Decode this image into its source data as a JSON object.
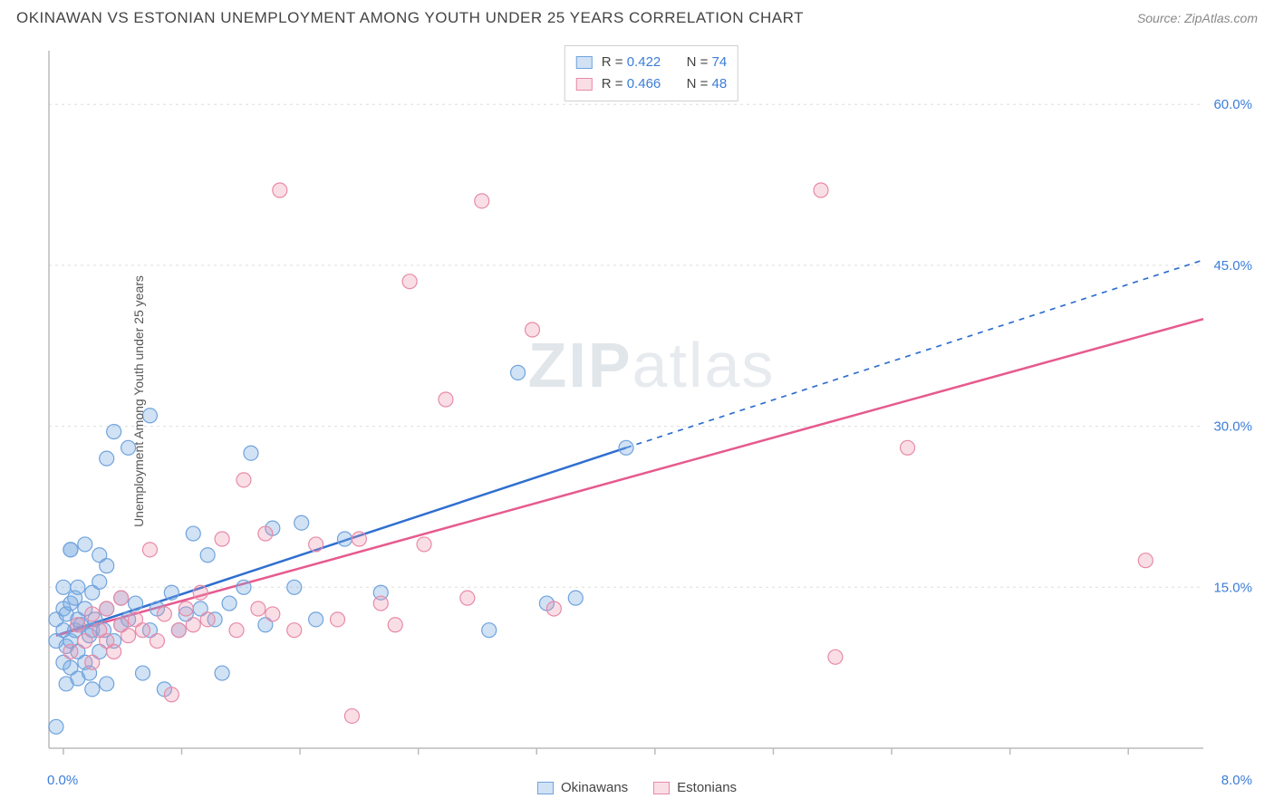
{
  "header": {
    "title": "OKINAWAN VS ESTONIAN UNEMPLOYMENT AMONG YOUTH UNDER 25 YEARS CORRELATION CHART",
    "source": "Source: ZipAtlas.com"
  },
  "watermark": {
    "pre": "ZIP",
    "post": "atlas"
  },
  "chart": {
    "type": "scatter",
    "ylabel": "Unemployment Among Youth under 25 years",
    "xlim": [
      0,
      8
    ],
    "ylim": [
      0,
      65
    ],
    "xtick_positions": [
      0.1,
      0.92,
      1.74,
      2.56,
      3.38,
      4.2,
      5.02,
      5.84,
      6.66,
      7.48
    ],
    "yticks": [
      15,
      30,
      45,
      60
    ],
    "ytick_labels": [
      "15.0%",
      "30.0%",
      "45.0%",
      "60.0%"
    ],
    "xlabel_min": "0.0%",
    "xlabel_max": "8.0%",
    "background_color": "#ffffff",
    "grid_color": "#dddddd",
    "axis_color": "#bbbbbb",
    "tick_label_color": "#3b7dd8",
    "marker_radius": 8,
    "marker_stroke_width": 1.2,
    "series": [
      {
        "name": "Okinawans",
        "fill": "rgba(123,171,227,0.35)",
        "stroke": "#6fa3dd",
        "R": "0.422",
        "N": "74",
        "trend": {
          "x1": 0.05,
          "y1": 10.5,
          "x2": 4.0,
          "y2": 28.0,
          "x2_dash": 8.0,
          "y2_dash": 45.5,
          "color": "#2f6fd0",
          "width": 2.5
        },
        "points": [
          [
            0.05,
            2.0
          ],
          [
            0.05,
            10.0
          ],
          [
            0.05,
            12.0
          ],
          [
            0.1,
            8.0
          ],
          [
            0.1,
            11.0
          ],
          [
            0.1,
            13.0
          ],
          [
            0.1,
            15.0
          ],
          [
            0.12,
            6.0
          ],
          [
            0.12,
            9.5
          ],
          [
            0.12,
            12.5
          ],
          [
            0.15,
            10.0
          ],
          [
            0.15,
            13.5
          ],
          [
            0.15,
            18.5
          ],
          [
            0.15,
            7.5
          ],
          [
            0.18,
            11.0
          ],
          [
            0.18,
            14.0
          ],
          [
            0.2,
            6.5
          ],
          [
            0.2,
            9.0
          ],
          [
            0.2,
            12.0
          ],
          [
            0.2,
            15.0
          ],
          [
            0.22,
            11.5
          ],
          [
            0.25,
            8.0
          ],
          [
            0.25,
            13.0
          ],
          [
            0.25,
            19.0
          ],
          [
            0.28,
            10.5
          ],
          [
            0.28,
            7.0
          ],
          [
            0.3,
            11.0
          ],
          [
            0.3,
            14.5
          ],
          [
            0.3,
            5.5
          ],
          [
            0.32,
            12.0
          ],
          [
            0.35,
            9.0
          ],
          [
            0.35,
            15.5
          ],
          [
            0.35,
            18.0
          ],
          [
            0.38,
            11.0
          ],
          [
            0.4,
            6.0
          ],
          [
            0.4,
            13.0
          ],
          [
            0.4,
            17.0
          ],
          [
            0.4,
            27.0
          ],
          [
            0.45,
            10.0
          ],
          [
            0.45,
            29.5
          ],
          [
            0.5,
            11.5
          ],
          [
            0.5,
            14.0
          ],
          [
            0.55,
            12.0
          ],
          [
            0.55,
            28.0
          ],
          [
            0.6,
            13.5
          ],
          [
            0.65,
            7.0
          ],
          [
            0.7,
            11.0
          ],
          [
            0.7,
            31.0
          ],
          [
            0.75,
            13.0
          ],
          [
            0.8,
            5.5
          ],
          [
            0.85,
            14.5
          ],
          [
            0.9,
            11.0
          ],
          [
            0.95,
            12.5
          ],
          [
            1.0,
            20.0
          ],
          [
            1.05,
            13.0
          ],
          [
            1.1,
            18.0
          ],
          [
            1.15,
            12.0
          ],
          [
            1.2,
            7.0
          ],
          [
            1.25,
            13.5
          ],
          [
            1.35,
            15.0
          ],
          [
            1.4,
            27.5
          ],
          [
            1.5,
            11.5
          ],
          [
            1.55,
            20.5
          ],
          [
            1.7,
            15.0
          ],
          [
            1.75,
            21.0
          ],
          [
            1.85,
            12.0
          ],
          [
            2.05,
            19.5
          ],
          [
            2.3,
            14.5
          ],
          [
            3.05,
            11.0
          ],
          [
            3.25,
            35.0
          ],
          [
            3.45,
            13.5
          ],
          [
            3.65,
            14.0
          ],
          [
            4.0,
            28.0
          ],
          [
            0.15,
            18.5
          ]
        ]
      },
      {
        "name": "Estonians",
        "fill": "rgba(236,145,172,0.30)",
        "stroke": "#e88aa8",
        "R": "0.466",
        "N": "48",
        "trend": {
          "x1": 0.05,
          "y1": 10.5,
          "x2": 8.0,
          "y2": 40.0,
          "color": "#e65a8e",
          "width": 2.5
        },
        "points": [
          [
            0.15,
            9.0
          ],
          [
            0.2,
            11.5
          ],
          [
            0.25,
            10.0
          ],
          [
            0.3,
            8.0
          ],
          [
            0.3,
            12.5
          ],
          [
            0.35,
            11.0
          ],
          [
            0.4,
            10.0
          ],
          [
            0.4,
            13.0
          ],
          [
            0.45,
            9.0
          ],
          [
            0.5,
            11.5
          ],
          [
            0.5,
            14.0
          ],
          [
            0.55,
            10.5
          ],
          [
            0.6,
            12.0
          ],
          [
            0.65,
            11.0
          ],
          [
            0.7,
            18.5
          ],
          [
            0.75,
            10.0
          ],
          [
            0.8,
            12.5
          ],
          [
            0.85,
            5.0
          ],
          [
            0.9,
            11.0
          ],
          [
            0.95,
            13.0
          ],
          [
            1.0,
            11.5
          ],
          [
            1.05,
            14.5
          ],
          [
            1.1,
            12.0
          ],
          [
            1.2,
            19.5
          ],
          [
            1.3,
            11.0
          ],
          [
            1.35,
            25.0
          ],
          [
            1.45,
            13.0
          ],
          [
            1.5,
            20.0
          ],
          [
            1.55,
            12.5
          ],
          [
            1.6,
            52.0
          ],
          [
            1.7,
            11.0
          ],
          [
            1.85,
            19.0
          ],
          [
            2.0,
            12.0
          ],
          [
            2.1,
            3.0
          ],
          [
            2.15,
            19.5
          ],
          [
            2.3,
            13.5
          ],
          [
            2.4,
            11.5
          ],
          [
            2.5,
            43.5
          ],
          [
            2.6,
            19.0
          ],
          [
            2.75,
            32.5
          ],
          [
            3.0,
            51.0
          ],
          [
            3.35,
            39.0
          ],
          [
            3.5,
            13.0
          ],
          [
            5.35,
            52.0
          ],
          [
            5.45,
            8.5
          ],
          [
            5.95,
            28.0
          ],
          [
            7.6,
            17.5
          ],
          [
            2.9,
            14.0
          ]
        ]
      }
    ],
    "legend_top": [
      {
        "swatch": 0,
        "r_label": "R =",
        "n_label": "N ="
      },
      {
        "swatch": 1,
        "r_label": "R =",
        "n_label": "N ="
      }
    ],
    "legend_bottom": [
      {
        "swatch": 0
      },
      {
        "swatch": 1
      }
    ]
  }
}
